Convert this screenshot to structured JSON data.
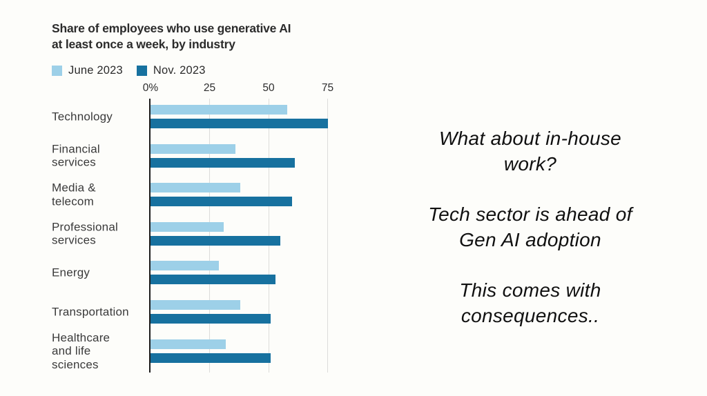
{
  "slide": {
    "background_color": "#fdfdfa",
    "right_text": {
      "paragraphs": [
        "What about in-house\nwork?",
        "Tech sector is ahead of\nGen AI adoption",
        "This comes with\nconsequences.."
      ],
      "text_color": "#101010"
    }
  },
  "chart_data": {
    "type": "bar",
    "orientation": "horizontal",
    "title": "Share of employees who use generative AI\nat least once a week, by industry",
    "unit": "percent",
    "categories": [
      "Technology",
      "Financial\nservices",
      "Media &\ntelecom",
      "Professional\nservices",
      "Energy",
      "Transportation",
      "Healthcare\nand life\nsciences"
    ],
    "series": [
      {
        "name": "June 2023",
        "color": "#9dd0e8",
        "values": [
          58,
          36,
          38,
          31,
          29,
          38,
          32
        ]
      },
      {
        "name": "Nov. 2023",
        "color": "#17719f",
        "values": [
          75,
          61,
          60,
          55,
          53,
          51,
          51
        ]
      }
    ],
    "xlim": [
      0,
      80
    ],
    "xticks": [
      {
        "value": 0,
        "label": "0%"
      },
      {
        "value": 25,
        "label": "25"
      },
      {
        "value": 50,
        "label": "50"
      },
      {
        "value": 75,
        "label": "75"
      }
    ],
    "grid": "vertical",
    "legend_position": "top-left",
    "axis_color": "#1c1c1c",
    "gridline_color": "#dcdcda"
  }
}
